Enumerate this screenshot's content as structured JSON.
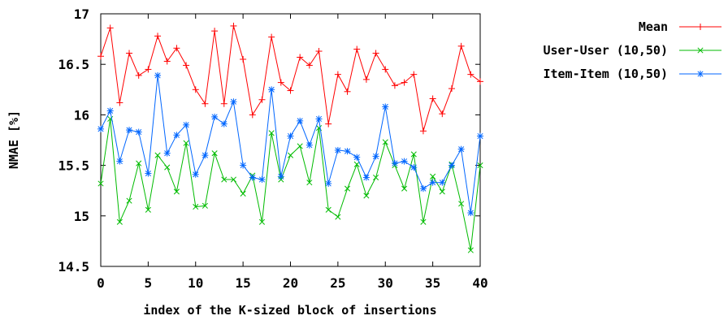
{
  "chart_data": {
    "type": "line",
    "title": "",
    "xlabel": "index of the K-sized block of insertions",
    "ylabel": "NMAE [%]",
    "xlim": [
      0,
      40
    ],
    "ylim": [
      14.5,
      17
    ],
    "xticks": [
      "0",
      "5",
      "10",
      "15",
      "20",
      "25",
      "30",
      "35",
      "40"
    ],
    "yticks": [
      "14.5",
      "15",
      "15.5",
      "16",
      "16.5",
      "17"
    ],
    "grid": false,
    "legend_position": "top-right, outside plot",
    "x": [
      0,
      1,
      2,
      3,
      4,
      5,
      6,
      7,
      8,
      9,
      10,
      11,
      12,
      13,
      14,
      15,
      16,
      17,
      18,
      19,
      20,
      21,
      22,
      23,
      24,
      25,
      26,
      27,
      28,
      29,
      30,
      31,
      32,
      33,
      34,
      35,
      36,
      37,
      38,
      39,
      40
    ],
    "series": [
      {
        "name": "Mean",
        "color": "#ff0000",
        "marker": "plus",
        "values": [
          16.58,
          16.86,
          16.12,
          16.61,
          16.39,
          16.45,
          16.78,
          16.53,
          16.66,
          16.49,
          16.25,
          16.11,
          16.83,
          16.11,
          16.88,
          16.55,
          16.0,
          16.15,
          16.77,
          16.32,
          16.24,
          16.57,
          16.49,
          16.63,
          15.91,
          16.4,
          16.23,
          16.65,
          16.35,
          16.61,
          16.45,
          16.29,
          16.32,
          16.4,
          15.84,
          16.16,
          16.01,
          16.26,
          16.68,
          16.4,
          16.33
        ]
      },
      {
        "name": "User-User (10,50)",
        "color": "#00bb00",
        "marker": "x",
        "values": [
          15.32,
          15.96,
          14.94,
          15.15,
          15.52,
          15.06,
          15.6,
          15.48,
          15.24,
          15.72,
          15.09,
          15.1,
          15.62,
          15.36,
          15.36,
          15.22,
          15.4,
          14.94,
          15.82,
          15.36,
          15.6,
          15.69,
          15.33,
          15.87,
          15.06,
          14.99,
          15.27,
          15.51,
          15.2,
          15.38,
          15.73,
          15.5,
          15.27,
          15.61,
          14.94,
          15.39,
          15.24,
          15.51,
          15.12,
          14.66,
          15.5
        ]
      },
      {
        "name": "Item-Item (10,50)",
        "color": "#0066ff",
        "marker": "star",
        "values": [
          15.86,
          16.04,
          15.54,
          15.85,
          15.83,
          15.42,
          16.39,
          15.62,
          15.8,
          15.9,
          15.41,
          15.6,
          15.98,
          15.91,
          16.13,
          15.5,
          15.38,
          15.36,
          16.25,
          15.39,
          15.79,
          15.94,
          15.7,
          15.96,
          15.32,
          15.65,
          15.64,
          15.58,
          15.38,
          15.59,
          16.08,
          15.52,
          15.54,
          15.48,
          15.27,
          15.33,
          15.33,
          15.5,
          15.66,
          15.03,
          15.79
        ]
      }
    ]
  }
}
